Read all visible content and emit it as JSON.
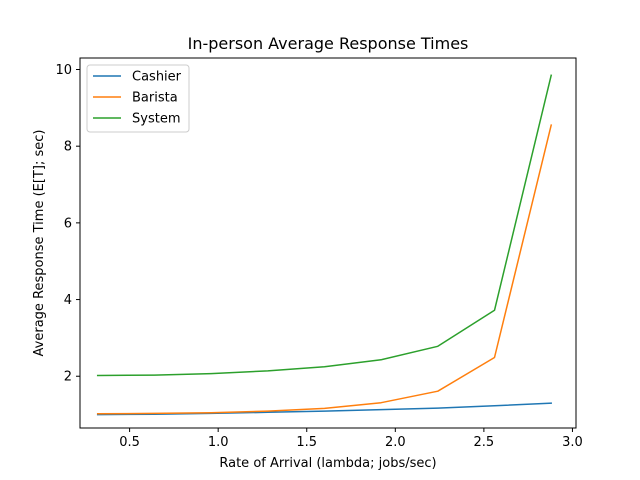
{
  "chart_data": {
    "type": "line",
    "title": "In-person Average Response Times",
    "xlabel": "Rate of Arrival (lambda; jobs/sec)",
    "ylabel": "Average Response Time (E[T]; sec)",
    "xlim": [
      0.22,
      3.02
    ],
    "ylim": [
      0.65,
      10.3
    ],
    "xticks": [
      0.5,
      1.0,
      1.5,
      2.0,
      2.5,
      3.0
    ],
    "xtick_labels": [
      "0.5",
      "1.0",
      "1.5",
      "2.0",
      "2.5",
      "3.0"
    ],
    "yticks": [
      2,
      4,
      6,
      8,
      10
    ],
    "ytick_labels": [
      "2",
      "4",
      "6",
      "8",
      "10"
    ],
    "grid": false,
    "legend_position": "top-left",
    "x": [
      0.32,
      0.64,
      0.96,
      1.28,
      1.6,
      1.92,
      2.24,
      2.56,
      2.88
    ],
    "series": [
      {
        "name": "Cashier",
        "color": "#1f77b4",
        "values": [
          1.0,
          1.01,
          1.03,
          1.06,
          1.09,
          1.13,
          1.17,
          1.23,
          1.3
        ]
      },
      {
        "name": "Barista",
        "color": "#ff7f0e",
        "values": [
          1.02,
          1.03,
          1.05,
          1.09,
          1.16,
          1.31,
          1.61,
          2.49,
          8.55
        ]
      },
      {
        "name": "System",
        "color": "#2ca02c",
        "values": [
          2.02,
          2.03,
          2.07,
          2.14,
          2.25,
          2.43,
          2.78,
          3.72,
          9.85
        ]
      }
    ]
  }
}
